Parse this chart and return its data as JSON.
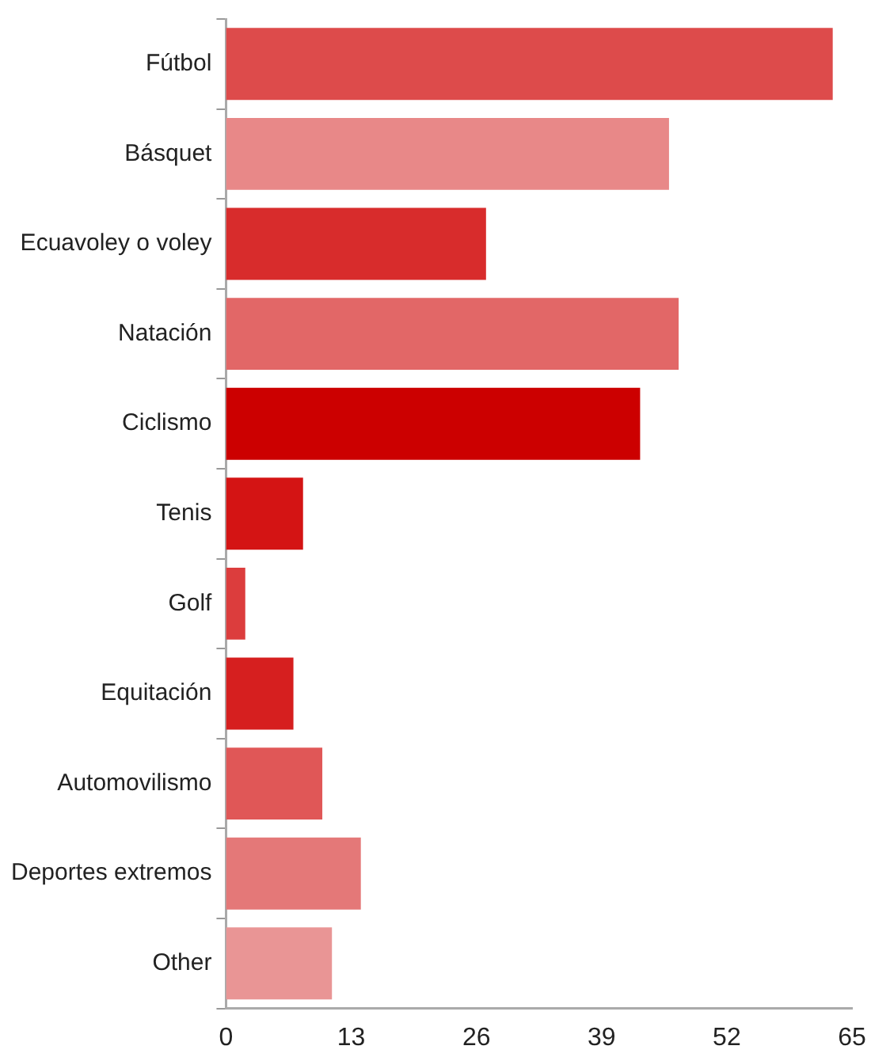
{
  "chart_data": {
    "type": "bar",
    "orientation": "horizontal",
    "categories": [
      "Fútbol",
      "Básquet",
      "Ecuavoley o voley",
      "Natación",
      "Ciclismo",
      "Tenis",
      "Golf",
      "Equitación",
      "Automovilismo",
      "Deportes extremos",
      "Other"
    ],
    "values": [
      63,
      46,
      27,
      47,
      43,
      8,
      2,
      7,
      10,
      14,
      11
    ],
    "colors": [
      "#dd4b4b",
      "#e88888",
      "#d82c2c",
      "#e26767",
      "#cc0000",
      "#d41414",
      "#dc3d3d",
      "#d61f1f",
      "#e05757",
      "#e47878",
      "#e99595"
    ],
    "xlim": [
      0,
      65
    ],
    "xticks": [
      0,
      13,
      26,
      39,
      52,
      65
    ],
    "grid": false,
    "legend": false
  }
}
